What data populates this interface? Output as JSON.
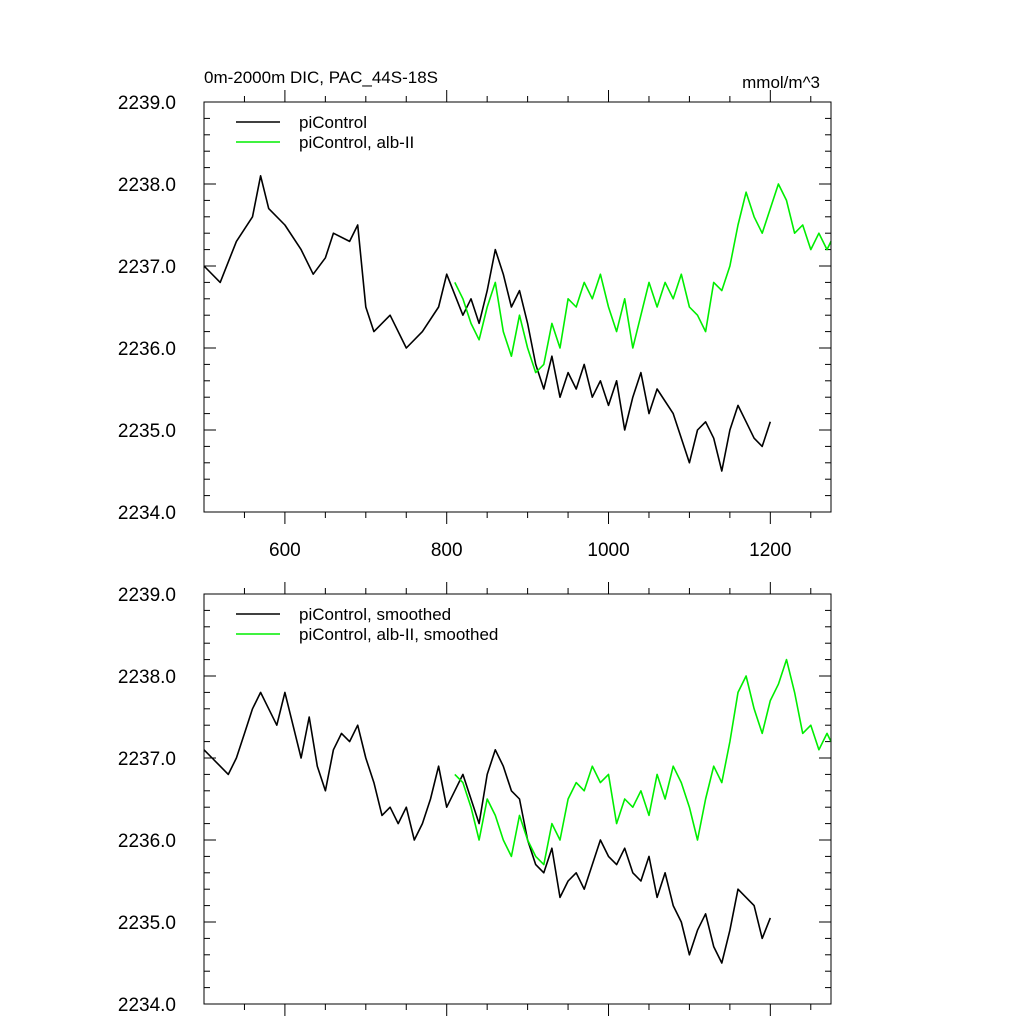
{
  "chart_data": [
    {
      "type": "line",
      "title": "0m-2000m DIC, PAC_44S-18S",
      "units": "mmol/m^3",
      "xlim": [
        500,
        1275
      ],
      "ylim": [
        2234.0,
        2239.0
      ],
      "xticks": [
        600,
        800,
        1000,
        1200
      ],
      "xtick_labels": [
        "600",
        "800",
        "1000",
        "1200"
      ],
      "yticks": [
        2234,
        2235,
        2236,
        2237,
        2238,
        2239
      ],
      "ytick_labels": [
        "2234.0",
        "2235.0",
        "2236.0",
        "2237.0",
        "2238.0",
        "2239.0"
      ],
      "legend_position": "top-left",
      "series": [
        {
          "name": "piControl",
          "color": "#000000",
          "x": [
            500,
            520,
            540,
            560,
            570,
            580,
            600,
            620,
            635,
            650,
            660,
            680,
            690,
            700,
            710,
            730,
            750,
            770,
            790,
            800,
            820,
            830,
            840,
            850,
            860,
            870,
            880,
            890,
            900,
            910,
            920,
            930,
            940,
            950,
            960,
            970,
            980,
            990,
            1000,
            1010,
            1020,
            1030,
            1040,
            1050,
            1060,
            1080,
            1100,
            1110,
            1120,
            1130,
            1140,
            1150,
            1160,
            1170,
            1180,
            1190,
            1200
          ],
          "y": [
            2237.0,
            2236.8,
            2237.3,
            2237.6,
            2238.1,
            2237.7,
            2237.5,
            2237.2,
            2236.9,
            2237.1,
            2237.4,
            2237.3,
            2237.5,
            2236.5,
            2236.2,
            2236.4,
            2236.0,
            2236.2,
            2236.5,
            2236.9,
            2236.4,
            2236.6,
            2236.3,
            2236.7,
            2237.2,
            2236.9,
            2236.5,
            2236.7,
            2236.3,
            2235.8,
            2235.5,
            2235.9,
            2235.4,
            2235.7,
            2235.5,
            2235.8,
            2235.4,
            2235.6,
            2235.3,
            2235.6,
            2235.0,
            2235.4,
            2235.7,
            2235.2,
            2235.5,
            2235.2,
            2234.6,
            2235.0,
            2235.1,
            2234.9,
            2234.5,
            2235.0,
            2235.3,
            2235.1,
            2234.9,
            2234.8,
            2235.1
          ]
        },
        {
          "name": "piControl, alb-II",
          "color": "#00ee00",
          "x": [
            810,
            820,
            830,
            840,
            850,
            860,
            870,
            880,
            890,
            900,
            910,
            920,
            930,
            940,
            950,
            960,
            970,
            980,
            990,
            1000,
            1010,
            1020,
            1030,
            1040,
            1050,
            1060,
            1070,
            1080,
            1090,
            1100,
            1110,
            1120,
            1130,
            1140,
            1150,
            1160,
            1170,
            1180,
            1190,
            1200,
            1210,
            1220,
            1230,
            1240,
            1250,
            1260,
            1270,
            1275
          ],
          "y": [
            2236.8,
            2236.6,
            2236.3,
            2236.1,
            2236.5,
            2236.8,
            2236.2,
            2235.9,
            2236.4,
            2236.0,
            2235.7,
            2235.8,
            2236.3,
            2236.0,
            2236.6,
            2236.5,
            2236.8,
            2236.6,
            2236.9,
            2236.5,
            2236.2,
            2236.6,
            2236.0,
            2236.4,
            2236.8,
            2236.5,
            2236.8,
            2236.6,
            2236.9,
            2236.5,
            2236.4,
            2236.2,
            2236.8,
            2236.7,
            2237.0,
            2237.5,
            2237.9,
            2237.6,
            2237.4,
            2237.7,
            2238.0,
            2237.8,
            2237.4,
            2237.5,
            2237.2,
            2237.4,
            2237.2,
            2237.3
          ]
        }
      ]
    },
    {
      "type": "line",
      "title": "",
      "units": "",
      "xlim": [
        500,
        1275
      ],
      "ylim": [
        2234.0,
        2239.0
      ],
      "xticks": [
        600,
        800,
        1000,
        1200
      ],
      "xtick_labels": [
        "",
        "",
        "",
        ""
      ],
      "yticks": [
        2234,
        2235,
        2236,
        2237,
        2238,
        2239
      ],
      "ytick_labels": [
        "2234.0",
        "2235.0",
        "2236.0",
        "2237.0",
        "2238.0",
        "2239.0"
      ],
      "legend_position": "top-left",
      "series": [
        {
          "name": "piControl, smoothed",
          "color": "#000000",
          "x": [
            500,
            510,
            520,
            530,
            540,
            550,
            560,
            570,
            580,
            590,
            600,
            610,
            620,
            630,
            640,
            650,
            660,
            670,
            680,
            690,
            700,
            710,
            720,
            730,
            740,
            750,
            760,
            770,
            780,
            790,
            800,
            810,
            820,
            830,
            840,
            850,
            860,
            870,
            880,
            890,
            900,
            910,
            920,
            930,
            940,
            950,
            960,
            970,
            980,
            990,
            1000,
            1010,
            1020,
            1030,
            1040,
            1050,
            1060,
            1070,
            1080,
            1090,
            1100,
            1110,
            1120,
            1130,
            1140,
            1150,
            1160,
            1170,
            1180,
            1190,
            1200
          ],
          "y": [
            2237.1,
            2237.0,
            2236.9,
            2236.8,
            2237.0,
            2237.3,
            2237.6,
            2237.8,
            2237.6,
            2237.4,
            2237.8,
            2237.4,
            2237.0,
            2237.5,
            2236.9,
            2236.6,
            2237.1,
            2237.3,
            2237.2,
            2237.4,
            2237.0,
            2236.7,
            2236.3,
            2236.4,
            2236.2,
            2236.4,
            2236.0,
            2236.2,
            2236.5,
            2236.9,
            2236.4,
            2236.6,
            2236.8,
            2236.5,
            2236.2,
            2236.8,
            2237.1,
            2236.9,
            2236.6,
            2236.5,
            2236.0,
            2235.7,
            2235.6,
            2235.9,
            2235.3,
            2235.5,
            2235.6,
            2235.4,
            2235.7,
            2236.0,
            2235.8,
            2235.7,
            2235.9,
            2235.6,
            2235.5,
            2235.8,
            2235.3,
            2235.6,
            2235.2,
            2235.0,
            2234.6,
            2234.9,
            2235.1,
            2234.7,
            2234.5,
            2234.9,
            2235.4,
            2235.3,
            2235.2,
            2234.8,
            2235.05
          ]
        },
        {
          "name": "piControl, alb-II, smoothed",
          "color": "#00ee00",
          "x": [
            810,
            820,
            830,
            840,
            850,
            860,
            870,
            880,
            890,
            900,
            910,
            920,
            930,
            940,
            950,
            960,
            970,
            980,
            990,
            1000,
            1010,
            1020,
            1030,
            1040,
            1050,
            1060,
            1070,
            1080,
            1090,
            1100,
            1110,
            1120,
            1130,
            1140,
            1150,
            1160,
            1170,
            1180,
            1190,
            1200,
            1210,
            1220,
            1230,
            1240,
            1250,
            1260,
            1270,
            1275
          ],
          "y": [
            2236.8,
            2236.7,
            2236.4,
            2236.0,
            2236.5,
            2236.3,
            2236.0,
            2235.8,
            2236.3,
            2236.0,
            2235.8,
            2235.7,
            2236.2,
            2236.0,
            2236.5,
            2236.7,
            2236.6,
            2236.9,
            2236.7,
            2236.8,
            2236.2,
            2236.5,
            2236.4,
            2236.6,
            2236.3,
            2236.8,
            2236.5,
            2236.9,
            2236.7,
            2236.4,
            2236.0,
            2236.5,
            2236.9,
            2236.7,
            2237.2,
            2237.8,
            2238.0,
            2237.6,
            2237.3,
            2237.7,
            2237.9,
            2238.2,
            2237.8,
            2237.3,
            2237.4,
            2237.1,
            2237.3,
            2237.2
          ]
        }
      ]
    }
  ]
}
